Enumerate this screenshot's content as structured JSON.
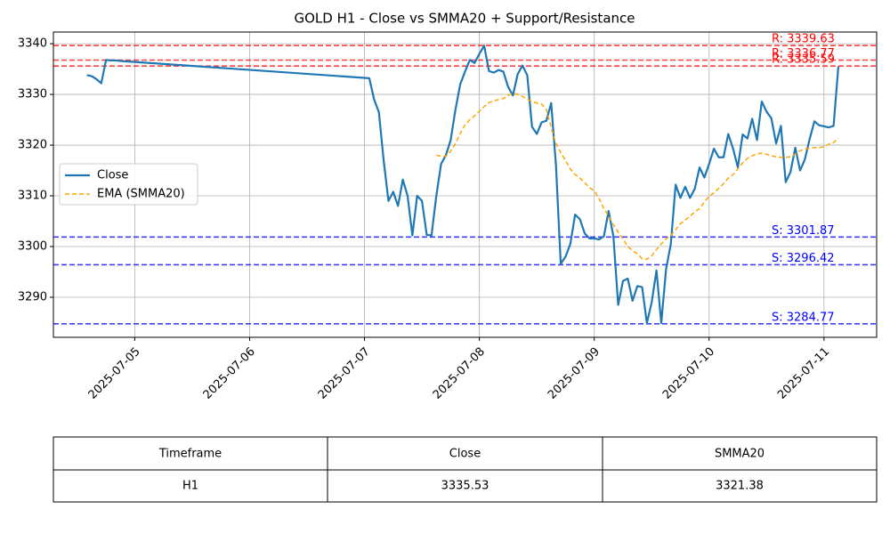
{
  "chart_data": {
    "type": "line",
    "title": "GOLD H1 - Close vs SMMA20 + Support/Resistance",
    "x": [
      "2025-07-04T14:00",
      "2025-07-04T15:00",
      "2025-07-04T16:00",
      "2025-07-04T17:00",
      "2025-07-04T18:00",
      "2025-07-04T19:00",
      "2025-07-04T20:00",
      "2025-07-04T21:00",
      "2025-07-07T01:00",
      "2025-07-07T02:00",
      "2025-07-07T03:00",
      "2025-07-07T04:00",
      "2025-07-07T05:00",
      "2025-07-07T06:00",
      "2025-07-07T07:00",
      "2025-07-07T08:00",
      "2025-07-07T09:00",
      "2025-07-07T10:00",
      "2025-07-07T11:00",
      "2025-07-07T12:00",
      "2025-07-07T13:00",
      "2025-07-07T14:00",
      "2025-07-07T15:00",
      "2025-07-07T16:00",
      "2025-07-07T17:00",
      "2025-07-07T18:00",
      "2025-07-07T19:00",
      "2025-07-07T20:00",
      "2025-07-07T21:00",
      "2025-07-07T22:00",
      "2025-07-07T23:00",
      "2025-07-08T00:00",
      "2025-07-08T01:00",
      "2025-07-08T02:00",
      "2025-07-08T03:00",
      "2025-07-08T04:00",
      "2025-07-08T05:00",
      "2025-07-08T06:00",
      "2025-07-08T07:00",
      "2025-07-08T08:00",
      "2025-07-08T09:00",
      "2025-07-08T10:00",
      "2025-07-08T11:00",
      "2025-07-08T12:00",
      "2025-07-08T13:00",
      "2025-07-08T14:00",
      "2025-07-08T15:00",
      "2025-07-08T16:00",
      "2025-07-08T17:00",
      "2025-07-08T18:00",
      "2025-07-08T19:00",
      "2025-07-08T20:00",
      "2025-07-08T21:00",
      "2025-07-08T22:00",
      "2025-07-08T23:00",
      "2025-07-09T00:00",
      "2025-07-09T01:00",
      "2025-07-09T02:00",
      "2025-07-09T03:00",
      "2025-07-09T04:00",
      "2025-07-09T05:00",
      "2025-07-09T06:00",
      "2025-07-09T07:00",
      "2025-07-09T08:00",
      "2025-07-09T09:00",
      "2025-07-09T10:00",
      "2025-07-09T11:00",
      "2025-07-09T12:00",
      "2025-07-09T13:00",
      "2025-07-09T14:00",
      "2025-07-09T15:00",
      "2025-07-09T16:00",
      "2025-07-09T17:00",
      "2025-07-09T18:00",
      "2025-07-09T19:00",
      "2025-07-09T20:00",
      "2025-07-09T21:00",
      "2025-07-09T22:00",
      "2025-07-09T23:00",
      "2025-07-10T00:00",
      "2025-07-10T01:00",
      "2025-07-10T02:00",
      "2025-07-10T03:00",
      "2025-07-10T04:00",
      "2025-07-10T05:00",
      "2025-07-10T06:00",
      "2025-07-10T07:00",
      "2025-07-10T08:00",
      "2025-07-10T09:00",
      "2025-07-10T10:00",
      "2025-07-10T11:00",
      "2025-07-10T12:00",
      "2025-07-10T13:00",
      "2025-07-10T14:00",
      "2025-07-10T15:00",
      "2025-07-10T16:00",
      "2025-07-10T17:00",
      "2025-07-10T18:00",
      "2025-07-10T19:00",
      "2025-07-10T20:00",
      "2025-07-10T21:00",
      "2025-07-10T22:00",
      "2025-07-10T23:00",
      "2025-07-11T00:00",
      "2025-07-11T01:00",
      "2025-07-11T02:00",
      "2025-07-11T03:00"
    ],
    "series": [
      {
        "name": "Close",
        "color": "#1f77b4",
        "dash": false,
        "values": [
          3333.8,
          3333.6,
          3333.0,
          3332.2,
          3336.8,
          3336.7,
          3336.7,
          3336.6,
          3333.2,
          3329.0,
          3326.5,
          3317.0,
          3309.0,
          3310.8,
          3308.0,
          3313.2,
          3310.0,
          3302.2,
          3310.0,
          3309.0,
          3302.3,
          3302.2,
          3310.0,
          3316.3,
          3318.0,
          3321.0,
          3327.0,
          3332.0,
          3334.5,
          3336.8,
          3336.2,
          3338.0,
          3339.6,
          3334.6,
          3334.3,
          3334.8,
          3334.5,
          3331.5,
          3329.8,
          3334.0,
          3335.7,
          3333.8,
          3323.6,
          3322.2,
          3324.5,
          3324.8,
          3328.3,
          3316.0,
          3296.6,
          3298.0,
          3300.5,
          3306.3,
          3305.4,
          3302.6,
          3301.6,
          3301.6,
          3301.4,
          3302.0,
          3307.0,
          3302.0,
          3288.5,
          3293.2,
          3293.7,
          3289.3,
          3292.2,
          3292.0,
          3284.9,
          3289.0,
          3295.3,
          3284.9,
          3295.5,
          3300.5,
          3312.2,
          3309.6,
          3311.8,
          3309.6,
          3311.4,
          3315.6,
          3313.6,
          3316.3,
          3319.3,
          3317.6,
          3317.6,
          3322.2,
          3319.3,
          3315.6,
          3322.1,
          3321.3,
          3325.2,
          3321.0,
          3328.6,
          3326.6,
          3325.3,
          3320.3,
          3323.8,
          3312.7,
          3314.7,
          3319.5,
          3315.0,
          3317.2,
          3321.2,
          3324.7,
          3323.9,
          3323.7,
          3323.5,
          3323.8,
          3335.53
        ]
      },
      {
        "name": "EMA (SMMA20)",
        "color": "orange",
        "dash": true,
        "values": [
          null,
          null,
          null,
          null,
          null,
          null,
          null,
          null,
          null,
          null,
          null,
          null,
          null,
          null,
          null,
          null,
          null,
          null,
          null,
          null,
          null,
          null,
          3318.0,
          3317.8,
          3317.8,
          3318.8,
          3320.3,
          3322.3,
          3324.0,
          3325.0,
          3325.8,
          3326.7,
          3327.6,
          3328.4,
          3328.7,
          3329.0,
          3329.2,
          3329.8,
          3330.2,
          3330.0,
          3329.6,
          3329.1,
          3328.6,
          3328.3,
          3328.1,
          3327.0,
          3323.5,
          3320.3,
          3318.5,
          3317.0,
          3315.3,
          3314.2,
          3313.5,
          3312.6,
          3311.6,
          3311.0,
          3309.5,
          3307.5,
          3306.0,
          3304.3,
          3302.8,
          3301.5,
          3300.0,
          3299.2,
          3298.6,
          3297.6,
          3297.5,
          3298.2,
          3299.4,
          3300.5,
          3301.5,
          3302.2,
          3303.3,
          3304.5,
          3305.2,
          3306.0,
          3306.8,
          3307.5,
          3308.8,
          3309.9,
          3310.6,
          3311.5,
          3312.4,
          3313.5,
          3314.2,
          3315.3,
          3316.5,
          3317.4,
          3317.9,
          3318.3,
          3318.4,
          3318.2,
          3317.9,
          3317.7,
          3317.6,
          3317.6,
          3317.7,
          3318.2,
          3318.9,
          3319.2,
          3319.4,
          3319.5,
          3319.5,
          3319.7,
          3320.2,
          3320.5,
          3321.38
        ]
      }
    ],
    "levels": [
      {
        "label": "R: 3339.63",
        "value": 3339.63,
        "color": "#ff0000"
      },
      {
        "label": "R: 3336.77",
        "value": 3336.77,
        "color": "#ff0000"
      },
      {
        "label": "R: 3335.59",
        "value": 3335.59,
        "color": "#ff0000"
      },
      {
        "label": "S: 3301.87",
        "value": 3301.87,
        "color": "#0000ff"
      },
      {
        "label": "S: 3296.42",
        "value": 3296.42,
        "color": "#0000ff"
      },
      {
        "label": "S: 3284.77",
        "value": 3284.77,
        "color": "#0000ff"
      }
    ],
    "xlim": [
      "2025-07-04T07:00",
      "2025-07-11T11:00"
    ],
    "xticks": [
      "2025-07-05",
      "2025-07-06",
      "2025-07-07",
      "2025-07-08",
      "2025-07-09",
      "2025-07-10",
      "2025-07-11"
    ],
    "ylim": [
      3282.1,
      3342.3
    ],
    "yticks": [
      3290,
      3300,
      3310,
      3320,
      3330,
      3340
    ],
    "grid": true,
    "legend": "center left"
  },
  "table": {
    "header": [
      "Timeframe",
      "Close",
      "SMMA20"
    ],
    "rows": [
      [
        "H1",
        "3335.53",
        "3321.38"
      ]
    ]
  }
}
